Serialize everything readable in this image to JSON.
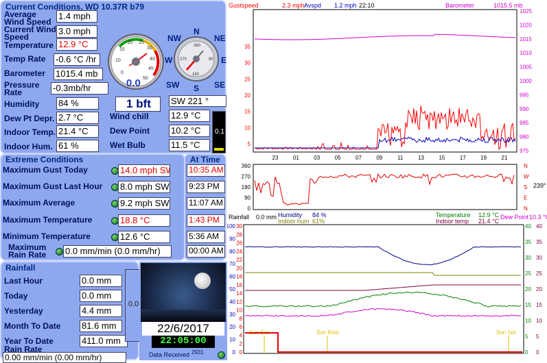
{
  "current": {
    "title": "Current Conditions, WD 10.37R b79",
    "avg_wind_label": "Average Wind Speed",
    "avg_wind": "1.4 mph",
    "cur_wind_label": "Current Wind Speed",
    "cur_wind": "3.0 mph",
    "temp_label": "Temperature",
    "temp": "12.9 °C",
    "temp_rate_label": "Temp Rate",
    "temp_rate": "-0.6 °C /hr",
    "baro_label": "Barometer",
    "baro": "1015.4 mb",
    "prate_label": "Pressure Rate",
    "prate": "-0.3mb/hr",
    "hum_label": "Humidity",
    "hum": "84 %",
    "dew_depr_label": "Dew Pt Depr.",
    "dew_depr": "2.7 °C",
    "in_temp_label": "Indoor Temp.",
    "in_temp": "21.4 °C",
    "in_hum_label": "Indoor Hum.",
    "in_hum": "61 %",
    "windchill_label": "Wind chill",
    "windchill": "12.9 °C",
    "dewpoint_label": "Dew Point",
    "dewpoint": "10.2 °C",
    "wetbulb_label": "Wet Bulb",
    "wetbulb": "11.5 °C",
    "beaufort": "1 bft",
    "direction": "SW  221 °",
    "rain_rate_meter": "0.1",
    "speed_gauge": {
      "display": "0.0",
      "ticks": [
        "0",
        "10",
        "15",
        "20",
        "25",
        "30",
        "40",
        "45",
        "50"
      ]
    },
    "compass": {
      "n": "N",
      "ne": "NE",
      "e": "E",
      "se": "SE",
      "s": "S",
      "sw": "SW",
      "w": "W",
      "nw": "NW",
      "deg_360": "360",
      "deg_90": "90",
      "deg_180": "180",
      "deg_270": "270"
    }
  },
  "extreme": {
    "title": "Extreme Conditions",
    "at_time_title": "At Time",
    "rows": [
      {
        "label": "Maximum Gust Today",
        "value": "14.0 mph SW",
        "time": "10:35 AM",
        "red": true
      },
      {
        "label": "Maximum Gust Last Hour",
        "value": "8.0 mph  SW",
        "time": "9:23 PM",
        "red": false
      },
      {
        "label": "Maximum Average",
        "value": "9.2 mph SW",
        "time": "11:07 AM",
        "red": false
      },
      {
        "label": "Maximum Temperature",
        "value": "18.8 °C",
        "time": "1:43 PM",
        "red": true
      },
      {
        "label": "Minimum Temperature",
        "value": "12.6 °C",
        "time": "5:36 AM",
        "red": false
      },
      {
        "label": "Maximum Rain Rate",
        "value": "0.0 mm/min (0.0 mm/hr)",
        "time": "00:00 AM",
        "red": false
      }
    ]
  },
  "rainfall": {
    "title": "Rainfall",
    "last_hour_label": "Last Hour",
    "last_hour": "0.0 mm",
    "today_label": "Today",
    "today": "0.0 mm",
    "yesterday_label": "Yesterday",
    "yesterday": "4.4 mm",
    "month_label": "Month To Date",
    "month": "81.6 mm",
    "year_label": "Year To Date",
    "year": "411.0 mm",
    "rate_label": "Rain Rate",
    "rate": "0.00 mm/min (0.00 mm/hr)",
    "gauge_value": "0.0"
  },
  "clock": {
    "date": "22/6/2017",
    "time": "22:05:00",
    "data_received_label": "Data Received",
    "data_received": "2931"
  },
  "top_chart": {
    "gust_label": "Gustspeed",
    "gust": "2.3 mph",
    "avg_label": "Avspd",
    "avg": "1.2 mph",
    "time": "22:10",
    "baro_label": "Barometer",
    "baro": "1015.5 mb",
    "left_ticks": [
      "35",
      "30",
      "25",
      "20",
      "15",
      "10",
      "5"
    ],
    "right_ticks": [
      "1025",
      "1020",
      "1015",
      "1010",
      "1005",
      "1000",
      "995",
      "990",
      "985",
      "980",
      "975"
    ],
    "x_ticks": [
      "23",
      "01",
      "03",
      "05",
      "07",
      "09",
      "11",
      "13",
      "15",
      "17",
      "19",
      "21"
    ],
    "colors": {
      "gust": "#ff0000",
      "avg": "#0000c0",
      "baro": "#cc00cc"
    }
  },
  "dir_chart": {
    "left_ticks": [
      "360",
      "270",
      "180",
      "90",
      "0"
    ],
    "right_letters": [
      "N",
      "W",
      "S",
      "E",
      "N"
    ],
    "current": "239°"
  },
  "bottom_chart": {
    "rainfall_label": "Rainfall",
    "rainfall": "0.0 mm",
    "humidity_label": "Humidity",
    "humidity": "84 %",
    "in_hum_label": "Indoor hum",
    "in_hum": "61%",
    "temp_label": "Temperature",
    "temp": "12.9 °C",
    "in_temp_label": "Indoor temp",
    "in_temp": "21.4 °C",
    "dew_label": "Dew Point",
    "dew": "10.3 °C",
    "sunset": "Sun Set",
    "sunrise": "Sun Rise",
    "sunset2": "Sun Set",
    "left_ticks": [
      "100",
      "90",
      "80",
      "70",
      "60",
      "50",
      "40",
      "30",
      "20",
      "10",
      "0"
    ],
    "left2_ticks": [
      "30",
      "28",
      "26",
      "24",
      "22",
      "20",
      "18",
      "16",
      "14",
      "12",
      "10",
      "8",
      "6",
      "4",
      "2",
      "0"
    ],
    "right_ticks": [
      "40",
      "35",
      "30",
      "25",
      "20",
      "15",
      "10",
      "5",
      "0"
    ],
    "right2_ticks": [
      "40",
      "35",
      "30",
      "25",
      "20",
      "15",
      "10",
      "5",
      "0"
    ]
  }
}
